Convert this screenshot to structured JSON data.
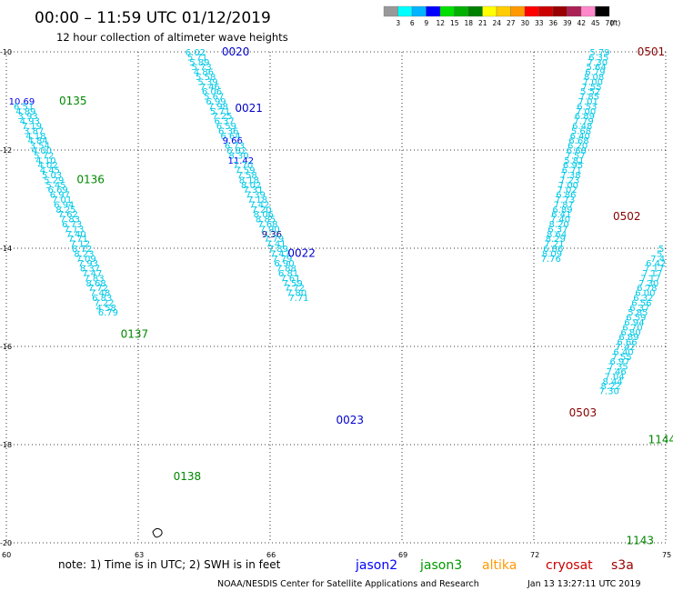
{
  "header": {
    "title": "00:00 – 11:59 UTC 01/12/2019",
    "subtitle": "12 hour collection of altimeter wave heights"
  },
  "colorbar": {
    "labels": [
      "3",
      "6",
      "9",
      "12",
      "15",
      "18",
      "21",
      "24",
      "27",
      "30",
      "33",
      "36",
      "39",
      "42",
      "45",
      "70"
    ],
    "unit": "(ft)",
    "colors": [
      "#999999",
      "#00ffff",
      "#00b4ff",
      "#0000ff",
      "#00e000",
      "#00b000",
      "#008000",
      "#ffff00",
      "#ffcc00",
      "#ff9900",
      "#ff0000",
      "#cc0000",
      "#990000",
      "#aa2255",
      "#ff88cc",
      "#000000"
    ]
  },
  "footer": {
    "note": "note:  1) Time is in UTC;  2) SWH is in feet",
    "credit": "NOAA/NESDIS Center for Satellite Applications and Research",
    "timestamp": "Jan 13 13:27:11 UTC 2019",
    "missions": [
      {
        "name": "jason2",
        "color": "#0000ff"
      },
      {
        "name": "jason3",
        "color": "#009900"
      },
      {
        "name": "altika",
        "color": "#ff9900"
      },
      {
        "name": "cryosat",
        "color": "#cc0000"
      },
      {
        "name": "s3a",
        "color": "#990000"
      }
    ]
  },
  "chart_data": {
    "type": "scatter",
    "title": "",
    "xlabel": "",
    "ylabel": "",
    "xlim": [
      60,
      75
    ],
    "ylim": [
      -20,
      -10
    ],
    "xticks": [
      "60",
      "63",
      "66",
      "69",
      "72",
      "75"
    ],
    "yticks": [
      "-10",
      "-12",
      "-14",
      "-16",
      "-18",
      "-20"
    ],
    "grid": true,
    "pass_labels": [
      {
        "text": "0020",
        "x": 64.9,
        "y": -10.0,
        "color": "#0000cc"
      },
      {
        "text": "0021",
        "x": 65.2,
        "y": -11.15,
        "color": "#0000cc"
      },
      {
        "text": "0022",
        "x": 66.4,
        "y": -14.1,
        "color": "#0000cc"
      },
      {
        "text": "0023",
        "x": 67.5,
        "y": -17.5,
        "color": "#0000cc"
      },
      {
        "text": "0135",
        "x": 61.2,
        "y": -11.0,
        "color": "#008800"
      },
      {
        "text": "0136",
        "x": 61.6,
        "y": -12.6,
        "color": "#008800"
      },
      {
        "text": "0137",
        "x": 62.6,
        "y": -15.75,
        "color": "#008800"
      },
      {
        "text": "0138",
        "x": 63.8,
        "y": -18.65,
        "color": "#008800"
      },
      {
        "text": "0501",
        "x": 74.35,
        "y": -10.0,
        "color": "#880000"
      },
      {
        "text": "0502",
        "x": 73.8,
        "y": -13.35,
        "color": "#880000"
      },
      {
        "text": "0503",
        "x": 72.8,
        "y": -17.35,
        "color": "#880000"
      },
      {
        "text": "1143",
        "x": 74.1,
        "y": -19.95,
        "color": "#008800"
      },
      {
        "text": "1144",
        "x": 74.6,
        "y": -17.9,
        "color": "#008800"
      }
    ],
    "series": [
      {
        "name": "0020",
        "x0": 64.3,
        "y0": -10.0,
        "dx": 0.047,
        "dy": 0.1,
        "values": [
          "6.02",
          "5.71",
          "5.89",
          "5.73",
          "4.86",
          "5.58",
          "5.39",
          "7.46",
          "6.06",
          "5.67",
          "6.99",
          "7.98",
          "5.71",
          "7.25",
          "6.37",
          "6.59",
          "6.36",
          "6.64",
          "9.66",
          "6.73",
          "6.82",
          "8.30",
          "11.42",
          "7.70",
          "7.59",
          "7.58",
          "8.18",
          "8.02",
          "7.31",
          "7.39",
          "7.18",
          "7.42",
          "7.20",
          "8.06",
          "8.85",
          "7.68",
          "7.90",
          "9.36",
          "7.79",
          "7.41",
          "7.89",
          "7.47",
          "7.79",
          "6.90",
          "7.88",
          "6.81",
          "7.61",
          "7.59",
          "7.72",
          "7.80",
          "7.71"
        ],
        "colors": [
          "c",
          "c",
          "c",
          "c",
          "c",
          "c",
          "c",
          "c",
          "c",
          "c",
          "c",
          "c",
          "c",
          "c",
          "c",
          "c",
          "c",
          "c",
          "b",
          "c",
          "c",
          "c",
          "b",
          "c",
          "c",
          "c",
          "c",
          "c",
          "c",
          "c",
          "c",
          "c",
          "c",
          "c",
          "c",
          "c",
          "c",
          "d",
          "c",
          "c",
          "c",
          "c",
          "c",
          "c",
          "c",
          "c",
          "c",
          "c",
          "c",
          "c",
          "c"
        ]
      },
      {
        "name": "0135",
        "x0": 60.35,
        "y0": -11.0,
        "dx": 0.0457,
        "dy": 0.1,
        "values": [
          "10.69",
          "6.51",
          "4.89",
          "3.93",
          "4.93",
          "7.19",
          "3.87",
          "4.18",
          "4.84",
          "3.54",
          "4.00",
          "5.72",
          "4.10",
          "4.02",
          "4.45",
          "5.03",
          "5.29",
          "5.45",
          "6.69",
          "6.97",
          "7.01",
          "6.94",
          "8.25",
          "7.62",
          "7.83",
          "6.73",
          "7.13",
          "7.40",
          "7.71",
          "7.12",
          "8.72",
          "8.23",
          "7.09",
          "7.93",
          "8.37",
          "7.47",
          "7.83",
          "8.68",
          "7.72",
          "7.48",
          "6.83",
          "7.22",
          "4.58",
          "6.79"
        ],
        "colors": [
          "b",
          "c",
          "c",
          "c",
          "c",
          "c",
          "c",
          "c",
          "c",
          "c",
          "c",
          "c",
          "c",
          "c",
          "c",
          "c",
          "c",
          "c",
          "c",
          "c",
          "c",
          "c",
          "c",
          "c",
          "c",
          "c",
          "c",
          "c",
          "c",
          "c",
          "c",
          "c",
          "c",
          "c",
          "c",
          "c",
          "c",
          "c",
          "c",
          "c",
          "c",
          "c",
          "c",
          "c"
        ]
      },
      {
        "name": "0501",
        "x0": 73.5,
        "y0": -10.0,
        "dx": -0.0265,
        "dy": 0.1,
        "values": [
          "5.79",
          "6.35",
          "7.30",
          "5.64",
          "6.79",
          "8.08",
          "7.00",
          "7.55",
          "5.52",
          "7.85",
          "7.01",
          "6.53",
          "7.00",
          "6.89",
          "7.79",
          "6.48",
          "5.68",
          "6.40",
          "6.68",
          "6.20",
          "6.68",
          "7.57",
          "5.81",
          "6.95",
          "6.71",
          "7.38",
          "7.23",
          "7.00",
          "7.02",
          "6.86",
          "7.73",
          "7.87",
          "6.89",
          "6.41",
          "7.40",
          "8.20",
          "6.37",
          "8.64",
          "8.29",
          "7.21",
          "6.86",
          "8.09",
          "7.76"
        ],
        "colors": [
          "c",
          "c",
          "c",
          "c",
          "c",
          "c",
          "c",
          "c",
          "c",
          "c",
          "c",
          "c",
          "c",
          "c",
          "c",
          "c",
          "c",
          "c",
          "c",
          "c",
          "c",
          "c",
          "c",
          "c",
          "c",
          "c",
          "c",
          "c",
          "c",
          "c",
          "c",
          "c",
          "c",
          "c",
          "c",
          "c",
          "c",
          "c",
          "c",
          "c",
          "c",
          "c",
          "c"
        ]
      },
      {
        "name": "1144",
        "x0": 74.9,
        "y0": -14.0,
        "dx": -0.041,
        "dy": 0.1,
        "values": [
          "5",
          "5",
          "7.4",
          "6.42",
          "7.17",
          "7.17",
          "7.17",
          "7.30",
          "6.78",
          "6.00",
          "6.32",
          "6.56",
          "6.37",
          "5.85",
          "6.59",
          "6.94",
          "6.70",
          "6.80",
          "6.89",
          "6.66",
          "7.42",
          "6.40",
          "7.55",
          "6.97",
          "7.35",
          "7.46",
          "7.04",
          "8.44",
          "8.22",
          "7.30"
        ],
        "colors": [
          "c",
          "c",
          "c",
          "c",
          "c",
          "c",
          "c",
          "c",
          "c",
          "c",
          "c",
          "c",
          "c",
          "c",
          "c",
          "c",
          "c",
          "c",
          "c",
          "c",
          "c",
          "c",
          "c",
          "c",
          "c",
          "c",
          "c",
          "c",
          "c",
          "c"
        ]
      }
    ]
  }
}
